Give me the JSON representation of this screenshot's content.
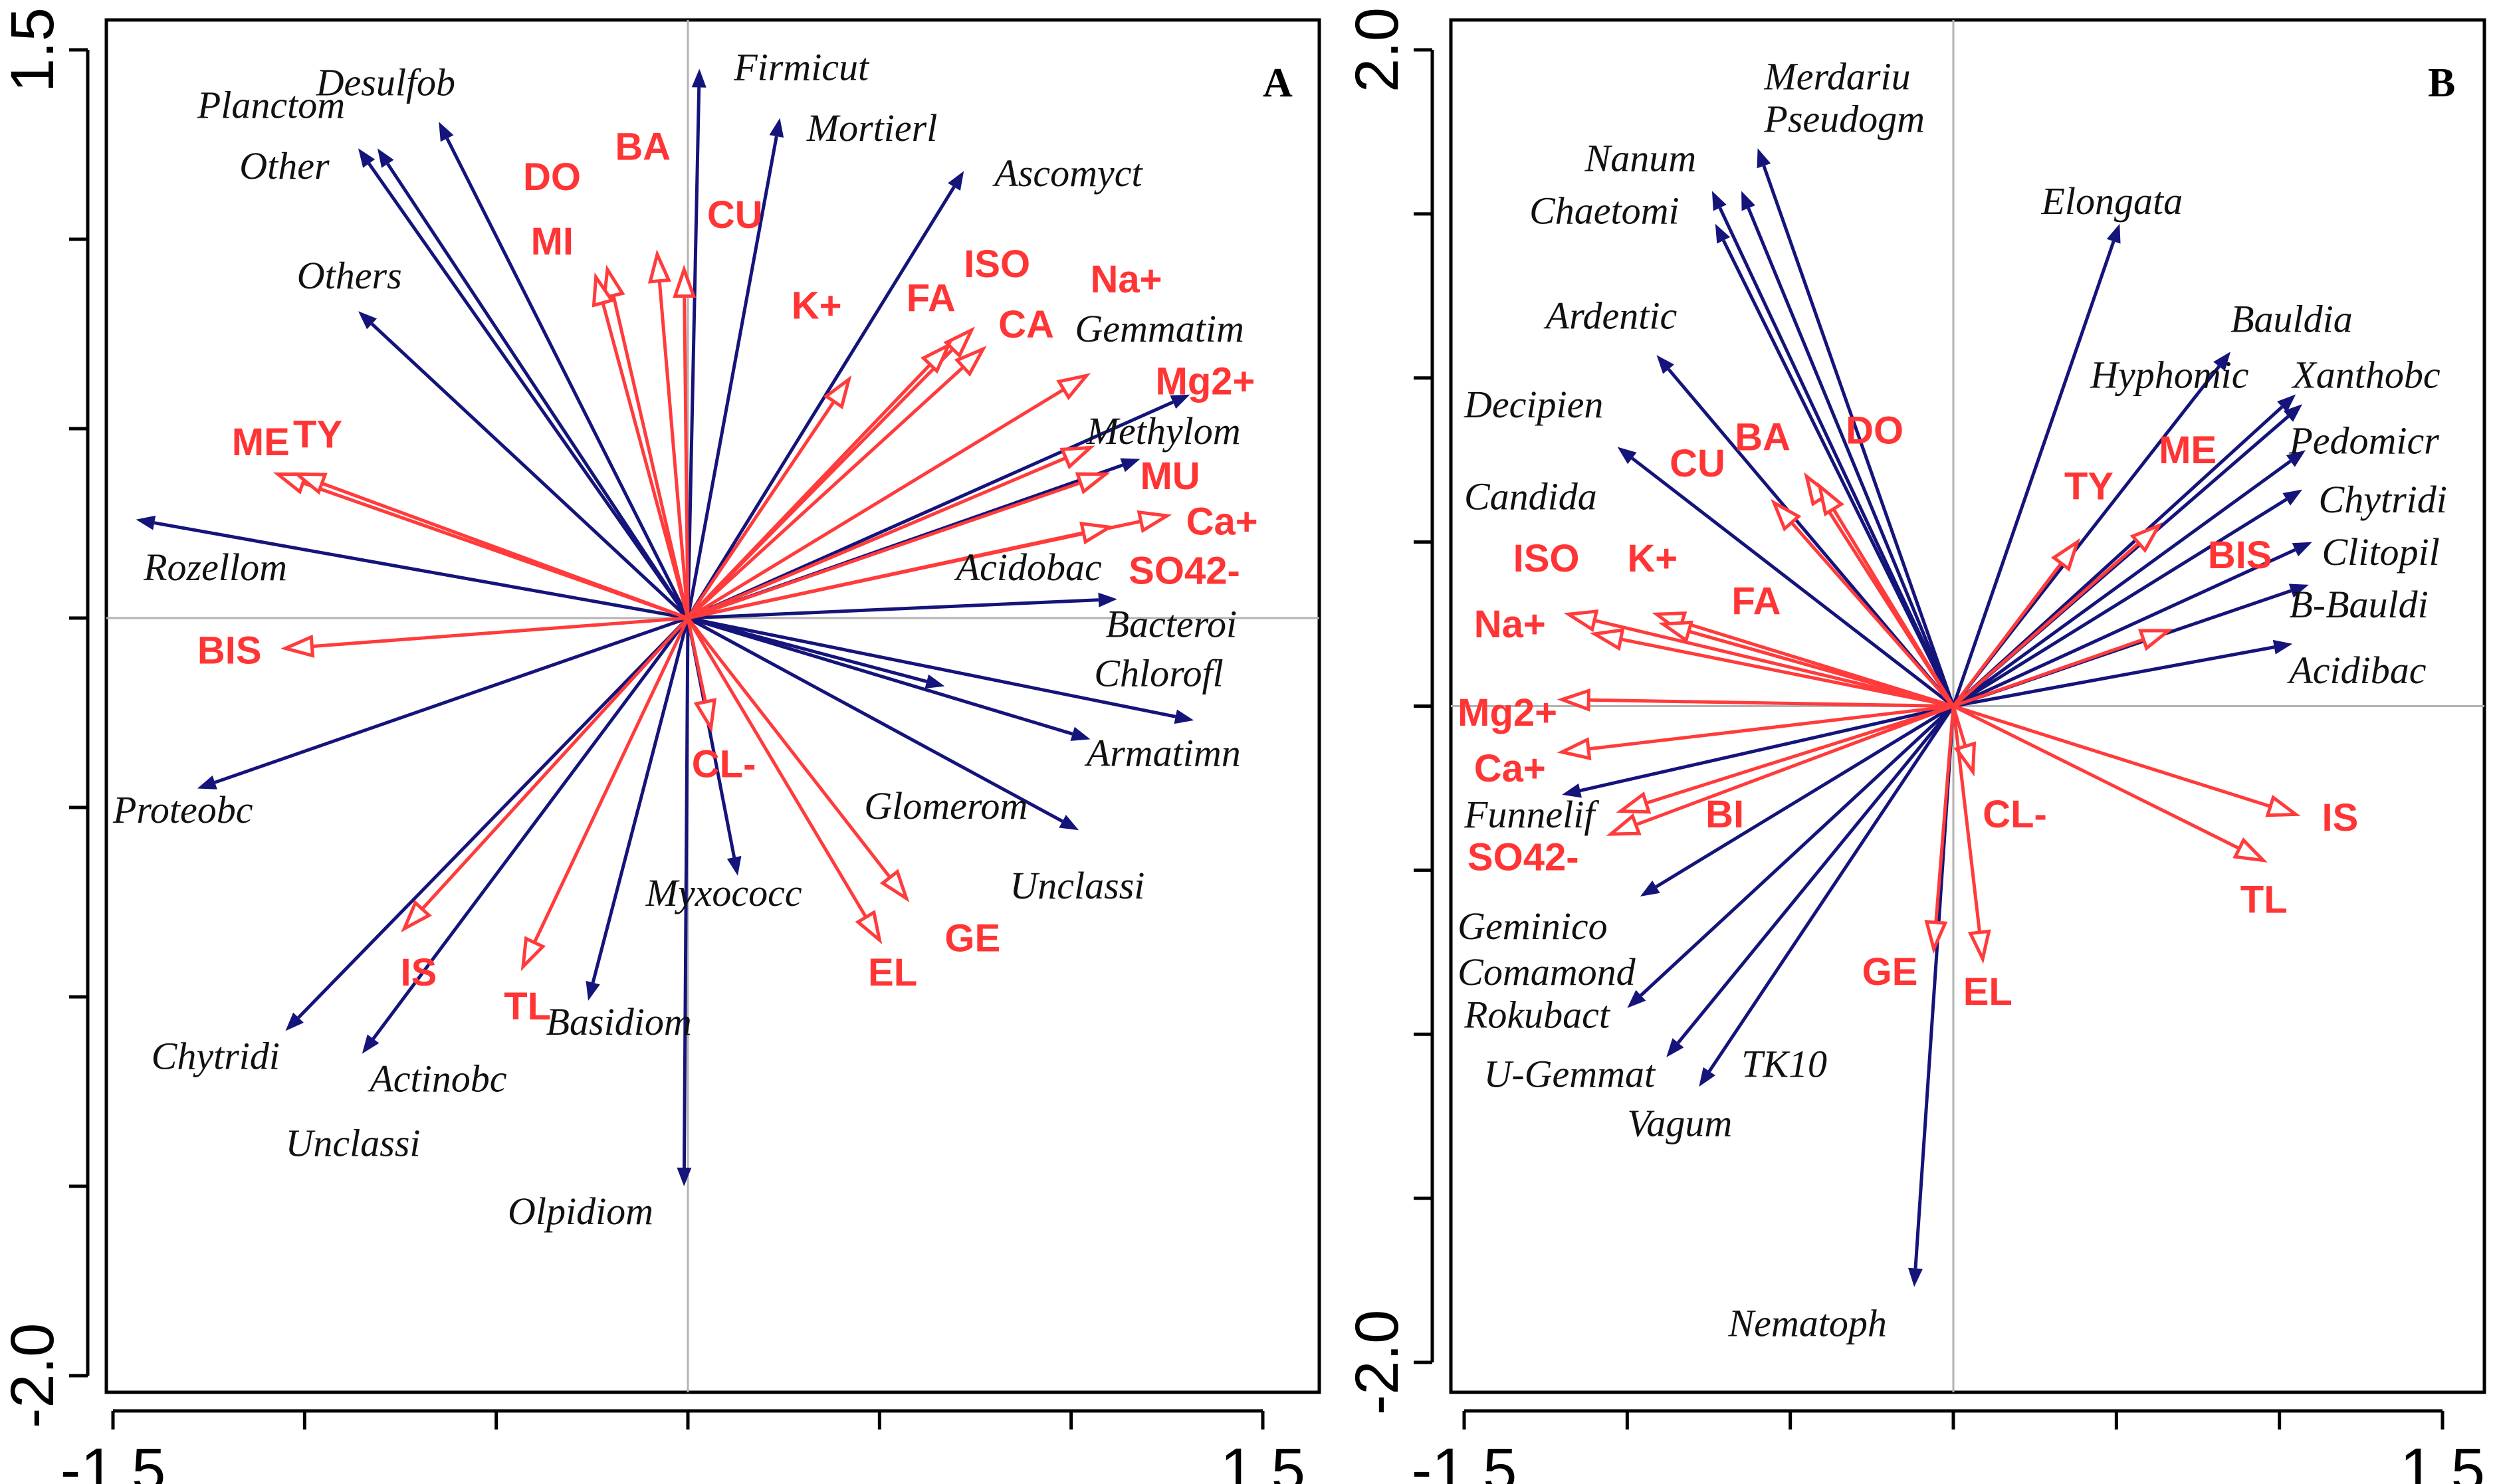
{
  "chart_data": [
    {
      "type": "scatter",
      "subtype": "rda-biplot",
      "panel_label": "A",
      "xlim": [
        -1.5,
        1.5
      ],
      "ylim": [
        -2.0,
        1.5
      ],
      "x_ticks": [
        {
          "v": -1.5,
          "label": "-1.5"
        },
        {
          "v": -1.0,
          "label": ""
        },
        {
          "v": -0.5,
          "label": ""
        },
        {
          "v": 0,
          "label": ""
        },
        {
          "v": 0.5,
          "label": ""
        },
        {
          "v": 1.0,
          "label": ""
        },
        {
          "v": 1.5,
          "label": "1.5"
        }
      ],
      "y_ticks": [
        {
          "v": 1.5,
          "label": "1.5"
        },
        {
          "v": 1.0,
          "label": ""
        },
        {
          "v": 0.5,
          "label": ""
        },
        {
          "v": 0,
          "label": ""
        },
        {
          "v": -0.5,
          "label": ""
        },
        {
          "v": -1.0,
          "label": ""
        },
        {
          "v": -1.5,
          "label": ""
        },
        {
          "v": -2.0,
          "label": "-2.0"
        }
      ],
      "species": [
        {
          "name": "Planctom",
          "x": -0.86,
          "y": 1.24,
          "lx": -1.28,
          "ly": 1.32
        },
        {
          "name": "Other",
          "x": -0.81,
          "y": 1.24,
          "lx": -1.17,
          "ly": 1.16
        },
        {
          "name": "Desulfob",
          "x": -0.65,
          "y": 1.31,
          "lx": -0.97,
          "ly": 1.38
        },
        {
          "name": "Firmicut",
          "x": 0.03,
          "y": 1.45,
          "lx": 0.12,
          "ly": 1.42
        },
        {
          "name": "Mortierl",
          "x": 0.24,
          "y": 1.32,
          "lx": 0.31,
          "ly": 1.26
        },
        {
          "name": "Ascomyct",
          "x": 0.72,
          "y": 1.18,
          "lx": 0.8,
          "ly": 1.14
        },
        {
          "name": "Others",
          "x": -0.86,
          "y": 0.81,
          "lx": -1.02,
          "ly": 0.87
        },
        {
          "name": "Gemmatim",
          "x": 1.31,
          "y": 0.59,
          "lx": 1.01,
          "ly": 0.73
        },
        {
          "name": "Methylom",
          "x": 1.18,
          "y": 0.42,
          "lx": 1.04,
          "ly": 0.46
        },
        {
          "name": "Rozellom",
          "x": -1.44,
          "y": 0.26,
          "lx": -1.42,
          "ly": 0.1
        },
        {
          "name": "Acidobac",
          "x": 1.12,
          "y": 0.05,
          "lx": 0.7,
          "ly": 0.1
        },
        {
          "name": "Bacteroi",
          "x": 0.67,
          "y": -0.18,
          "lx": 1.09,
          "ly": -0.05
        },
        {
          "name": "Chlorofl",
          "x": 1.32,
          "y": -0.27,
          "lx": 1.06,
          "ly": -0.18
        },
        {
          "name": "Armatimn",
          "x": 1.05,
          "y": -0.32,
          "lx": 1.04,
          "ly": -0.39
        },
        {
          "name": "Glomerom",
          "x": 1.02,
          "y": -0.56,
          "lx": 0.46,
          "ly": -0.53
        },
        {
          "name": "Unclassi",
          "x": 0,
          "y": 0,
          "lx": 0.84,
          "ly": -0.74
        },
        {
          "name": "Myxococc",
          "x": 0.13,
          "y": -0.68,
          "lx": -0.11,
          "ly": -0.76
        },
        {
          "name": "Proteobc",
          "x": -1.28,
          "y": -0.45,
          "lx": -1.5,
          "ly": -0.54
        },
        {
          "name": "Chytridi",
          "x": -1.05,
          "y": -1.09,
          "lx": -1.4,
          "ly": -1.19
        },
        {
          "name": "Actinobc",
          "x": -0.85,
          "y": -1.15,
          "lx": -0.83,
          "ly": -1.25
        },
        {
          "name": "Unclassi",
          "x": 0,
          "y": 0,
          "lx": -1.05,
          "ly": -1.42
        },
        {
          "name": "Basidiom",
          "x": -0.26,
          "y": -1.01,
          "lx": -0.37,
          "ly": -1.1
        },
        {
          "name": "Olpidiom",
          "x": -0.01,
          "y": -1.5,
          "lx": -0.47,
          "ly": -1.6
        }
      ],
      "env": [
        {
          "name": "BA",
          "x": -0.08,
          "y": 0.96,
          "lx": -0.19,
          "ly": 1.21
        },
        {
          "name": "DO",
          "x": -0.21,
          "y": 0.92,
          "lx": -0.43,
          "ly": 1.13
        },
        {
          "name": "MI",
          "x": -0.24,
          "y": 0.9,
          "lx": -0.41,
          "ly": 0.96
        },
        {
          "name": "CU",
          "x": -0.01,
          "y": 0.92,
          "lx": 0.05,
          "ly": 1.03
        },
        {
          "name": "ISO",
          "x": 0.74,
          "y": 0.76,
          "lx": 0.72,
          "ly": 0.9
        },
        {
          "name": "K+",
          "x": 0.42,
          "y": 0.63,
          "lx": 0.27,
          "ly": 0.79
        },
        {
          "name": "FA",
          "x": 0.68,
          "y": 0.72,
          "lx": 0.57,
          "ly": 0.81
        },
        {
          "name": "CA",
          "x": 0.77,
          "y": 0.71,
          "lx": 0.81,
          "ly": 0.74
        },
        {
          "name": "Na+",
          "x": 1.04,
          "y": 0.64,
          "lx": 1.05,
          "ly": 0.86
        },
        {
          "name": "Mg2+",
          "x": 1.05,
          "y": 0.45,
          "lx": 1.22,
          "ly": 0.59
        },
        {
          "name": "MU",
          "x": 1.09,
          "y": 0.38,
          "lx": 1.18,
          "ly": 0.34
        },
        {
          "name": "Ca+",
          "x": 1.25,
          "y": 0.27,
          "lx": 1.3,
          "ly": 0.22
        },
        {
          "name": "SO42-",
          "x": 1.1,
          "y": 0.24,
          "lx": 1.15,
          "ly": 0.09
        },
        {
          "name": "ME",
          "x": -1.07,
          "y": 0.38,
          "lx": -1.19,
          "ly": 0.43
        },
        {
          "name": "TY",
          "x": -1.02,
          "y": 0.38,
          "lx": -1.03,
          "ly": 0.45
        },
        {
          "name": "BIS",
          "x": -1.05,
          "y": -0.08,
          "lx": -1.28,
          "ly": -0.12
        },
        {
          "name": "CL-",
          "x": 0.06,
          "y": -0.29,
          "lx": 0.01,
          "ly": -0.42
        },
        {
          "name": "GE",
          "x": 0.57,
          "y": -0.74,
          "lx": 0.67,
          "ly": -0.88
        },
        {
          "name": "EL",
          "x": 0.5,
          "y": -0.85,
          "lx": 0.47,
          "ly": -0.97
        },
        {
          "name": "IS",
          "x": -0.74,
          "y": -0.82,
          "lx": -0.75,
          "ly": -0.97
        },
        {
          "name": "TL",
          "x": -0.43,
          "y": -0.92,
          "lx": -0.48,
          "ly": -1.06
        }
      ]
    },
    {
      "type": "scatter",
      "subtype": "rda-biplot",
      "panel_label": "B",
      "xlim": [
        -1.5,
        1.5
      ],
      "ylim": [
        -2.0,
        2.0
      ],
      "x_ticks": [
        {
          "v": -1.5,
          "label": "-1.5"
        },
        {
          "v": -1.0,
          "label": ""
        },
        {
          "v": -0.5,
          "label": ""
        },
        {
          "v": 0,
          "label": ""
        },
        {
          "v": 0.5,
          "label": ""
        },
        {
          "v": 1.0,
          "label": ""
        },
        {
          "v": 1.5,
          "label": "1.5"
        }
      ],
      "y_ticks": [
        {
          "v": 2.0,
          "label": "2.0"
        },
        {
          "v": 1.5,
          "label": ""
        },
        {
          "v": 1.0,
          "label": ""
        },
        {
          "v": 0.5,
          "label": ""
        },
        {
          "v": 0,
          "label": ""
        },
        {
          "v": -0.5,
          "label": ""
        },
        {
          "v": -1.0,
          "label": ""
        },
        {
          "v": -1.5,
          "label": ""
        },
        {
          "v": -2.0,
          "label": "-2.0"
        }
      ],
      "species": [
        {
          "name": "Merdariu",
          "x": -0.6,
          "y": 1.7,
          "lx": -0.58,
          "ly": 1.88
        },
        {
          "name": "Pseudogm",
          "x": -0.65,
          "y": 1.57,
          "lx": -0.58,
          "ly": 1.75
        },
        {
          "name": "Nanum",
          "x": -0.74,
          "y": 1.57,
          "lx": -1.13,
          "ly": 1.63
        },
        {
          "name": "Chaetomi",
          "x": -0.73,
          "y": 1.47,
          "lx": -1.3,
          "ly": 1.47
        },
        {
          "name": "Elongata",
          "x": 0.51,
          "y": 1.47,
          "lx": 0.27,
          "ly": 1.5
        },
        {
          "name": "Ardentic",
          "x": -0.91,
          "y": 1.07,
          "lx": -1.25,
          "ly": 1.15
        },
        {
          "name": "Decipien",
          "x": -1.03,
          "y": 0.79,
          "lx": -1.5,
          "ly": 0.88
        },
        {
          "name": "Candida",
          "x": 0,
          "y": 0,
          "lx": -1.5,
          "ly": 0.6
        },
        {
          "name": "Bauldia",
          "x": 0.85,
          "y": 1.08,
          "lx": 0.85,
          "ly": 1.14
        },
        {
          "name": "Hyphomic",
          "x": 1.05,
          "y": 0.95,
          "lx": 0.42,
          "ly": 0.97
        },
        {
          "name": "Xanthobc",
          "x": 1.07,
          "y": 0.92,
          "lx": 1.04,
          "ly": 0.97
        },
        {
          "name": "Pedomicr",
          "x": 1.08,
          "y": 0.78,
          "lx": 1.03,
          "ly": 0.77
        },
        {
          "name": "Chytridi",
          "x": 1.07,
          "y": 0.66,
          "lx": 1.12,
          "ly": 0.59
        },
        {
          "name": "Clitopil",
          "x": 1.1,
          "y": 0.5,
          "lx": 1.13,
          "ly": 0.43
        },
        {
          "name": "B-Bauldi",
          "x": 1.09,
          "y": 0.37,
          "lx": 1.03,
          "ly": 0.27
        },
        {
          "name": "Acidibac",
          "x": 1.04,
          "y": 0.19,
          "lx": 1.03,
          "ly": 0.07
        },
        {
          "name": "Funnelif",
          "x": -1.2,
          "y": -0.27,
          "lx": -1.5,
          "ly": -0.37
        },
        {
          "name": "Geminico",
          "x": -0.96,
          "y": -0.58,
          "lx": -1.52,
          "ly": -0.71
        },
        {
          "name": "Comamond",
          "x": -1.0,
          "y": -0.92,
          "lx": -1.52,
          "ly": -0.85
        },
        {
          "name": "Rokubact",
          "x": 0,
          "y": 0,
          "lx": -1.5,
          "ly": -0.98
        },
        {
          "name": "U-Gemmat",
          "x": -0.88,
          "y": -1.07,
          "lx": -1.44,
          "ly": -1.16
        },
        {
          "name": "TK10",
          "x": -0.78,
          "y": -1.16,
          "lx": -0.65,
          "ly": -1.13
        },
        {
          "name": "Vagum",
          "x": 0,
          "y": 0,
          "lx": -1.0,
          "ly": -1.31
        },
        {
          "name": "Nematoph",
          "x": -0.12,
          "y": -1.77,
          "lx": -0.69,
          "ly": -1.92
        }
      ],
      "env": [
        {
          "name": "BA",
          "x": -0.45,
          "y": 0.7,
          "lx": -0.67,
          "ly": 0.78
        },
        {
          "name": "DO",
          "x": -0.41,
          "y": 0.67,
          "lx": -0.33,
          "ly": 0.8
        },
        {
          "name": "CU",
          "x": -0.55,
          "y": 0.62,
          "lx": -0.87,
          "ly": 0.7
        },
        {
          "name": "TY",
          "x": 0.38,
          "y": 0.5,
          "lx": 0.34,
          "ly": 0.63
        },
        {
          "name": "ME",
          "x": 0.63,
          "y": 0.55,
          "lx": 0.63,
          "ly": 0.74
        },
        {
          "name": "BIS",
          "x": 0.66,
          "y": 0.23,
          "lx": 0.78,
          "ly": 0.42
        },
        {
          "name": "ISO",
          "x": -1.18,
          "y": 0.28,
          "lx": -1.35,
          "ly": 0.41
        },
        {
          "name": "K+",
          "x": -0.91,
          "y": 0.28,
          "lx": -1.0,
          "ly": 0.41
        },
        {
          "name": "FA",
          "x": -0.89,
          "y": 0.25,
          "lx": -0.68,
          "ly": 0.28
        },
        {
          "name": "Na+",
          "x": -1.1,
          "y": 0.22,
          "lx": -1.47,
          "ly": 0.21
        },
        {
          "name": "Mg2+",
          "x": -1.2,
          "y": 0.02,
          "lx": -1.52,
          "ly": -0.06
        },
        {
          "name": "Ca+",
          "x": -1.2,
          "y": -0.14,
          "lx": -1.47,
          "ly": -0.23
        },
        {
          "name": "SO42-",
          "x": -1.05,
          "y": -0.39,
          "lx": -1.49,
          "ly": -0.5
        },
        {
          "name": "BI",
          "x": -1.02,
          "y": -0.32,
          "lx": -0.76,
          "ly": -0.37
        },
        {
          "name": "CL-",
          "x": 0.06,
          "y": -0.2,
          "lx": 0.09,
          "ly": -0.37
        },
        {
          "name": "GE",
          "x": -0.06,
          "y": -0.74,
          "lx": -0.28,
          "ly": -0.85
        },
        {
          "name": "EL",
          "x": 0.09,
          "y": -0.77,
          "lx": 0.03,
          "ly": -0.91
        },
        {
          "name": "IS",
          "x": 1.05,
          "y": -0.33,
          "lx": 1.13,
          "ly": -0.38
        },
        {
          "name": "TL",
          "x": 0.95,
          "y": -0.47,
          "lx": 0.88,
          "ly": -0.63
        }
      ]
    }
  ]
}
